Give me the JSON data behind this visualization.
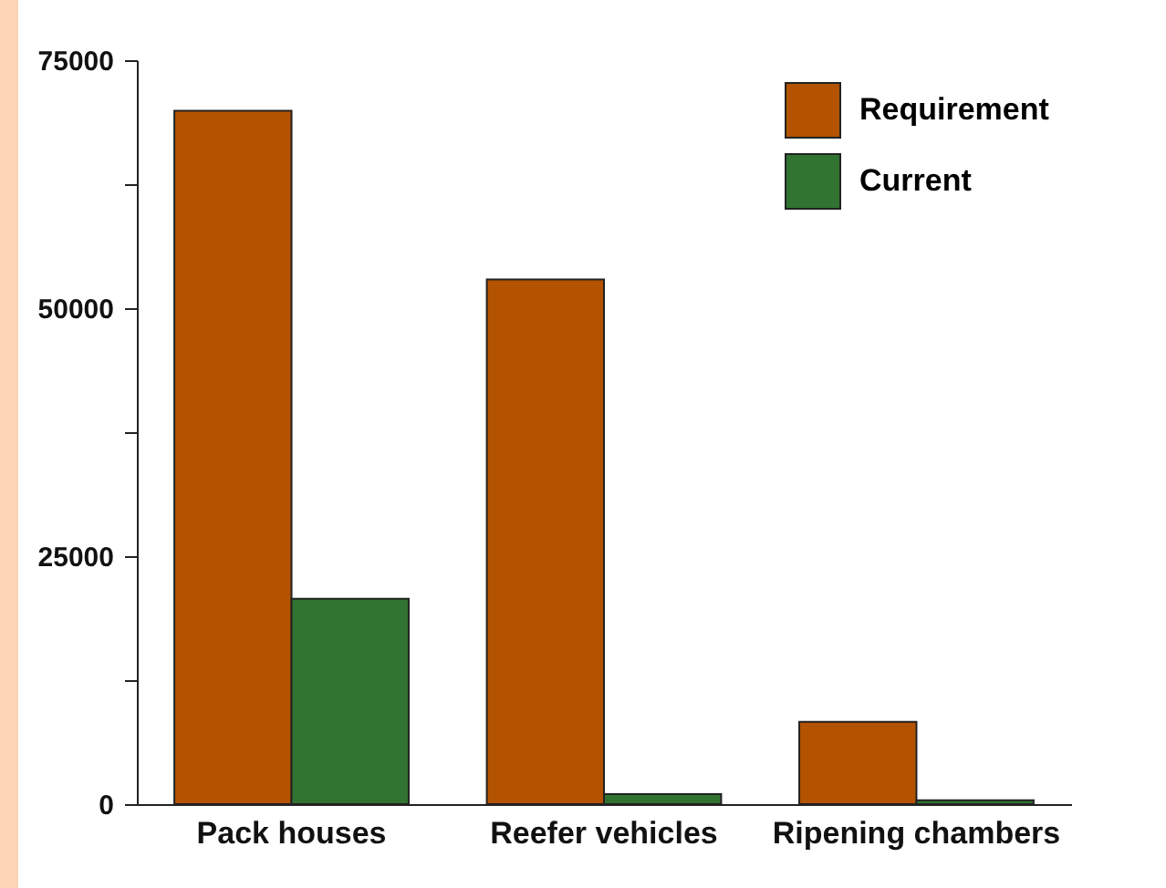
{
  "chart_data": {
    "type": "bar",
    "categories": [
      "Pack houses",
      "Reefer vehicles",
      "Ripening chambers"
    ],
    "series": [
      {
        "name": "Requirement",
        "color": "#b35300",
        "values": [
          69900,
          52900,
          8300
        ]
      },
      {
        "name": "Current",
        "color": "#317331",
        "values": [
          20700,
          1000,
          400
        ]
      }
    ],
    "ylim": [
      0,
      75000
    ],
    "yticks": [
      0,
      {
        "value": 12500,
        "label": null
      },
      25000,
      {
        "value": 37500,
        "label": null
      },
      50000,
      {
        "value": 62500,
        "label": null
      },
      75000
    ],
    "grid": false,
    "legend": "top right"
  }
}
